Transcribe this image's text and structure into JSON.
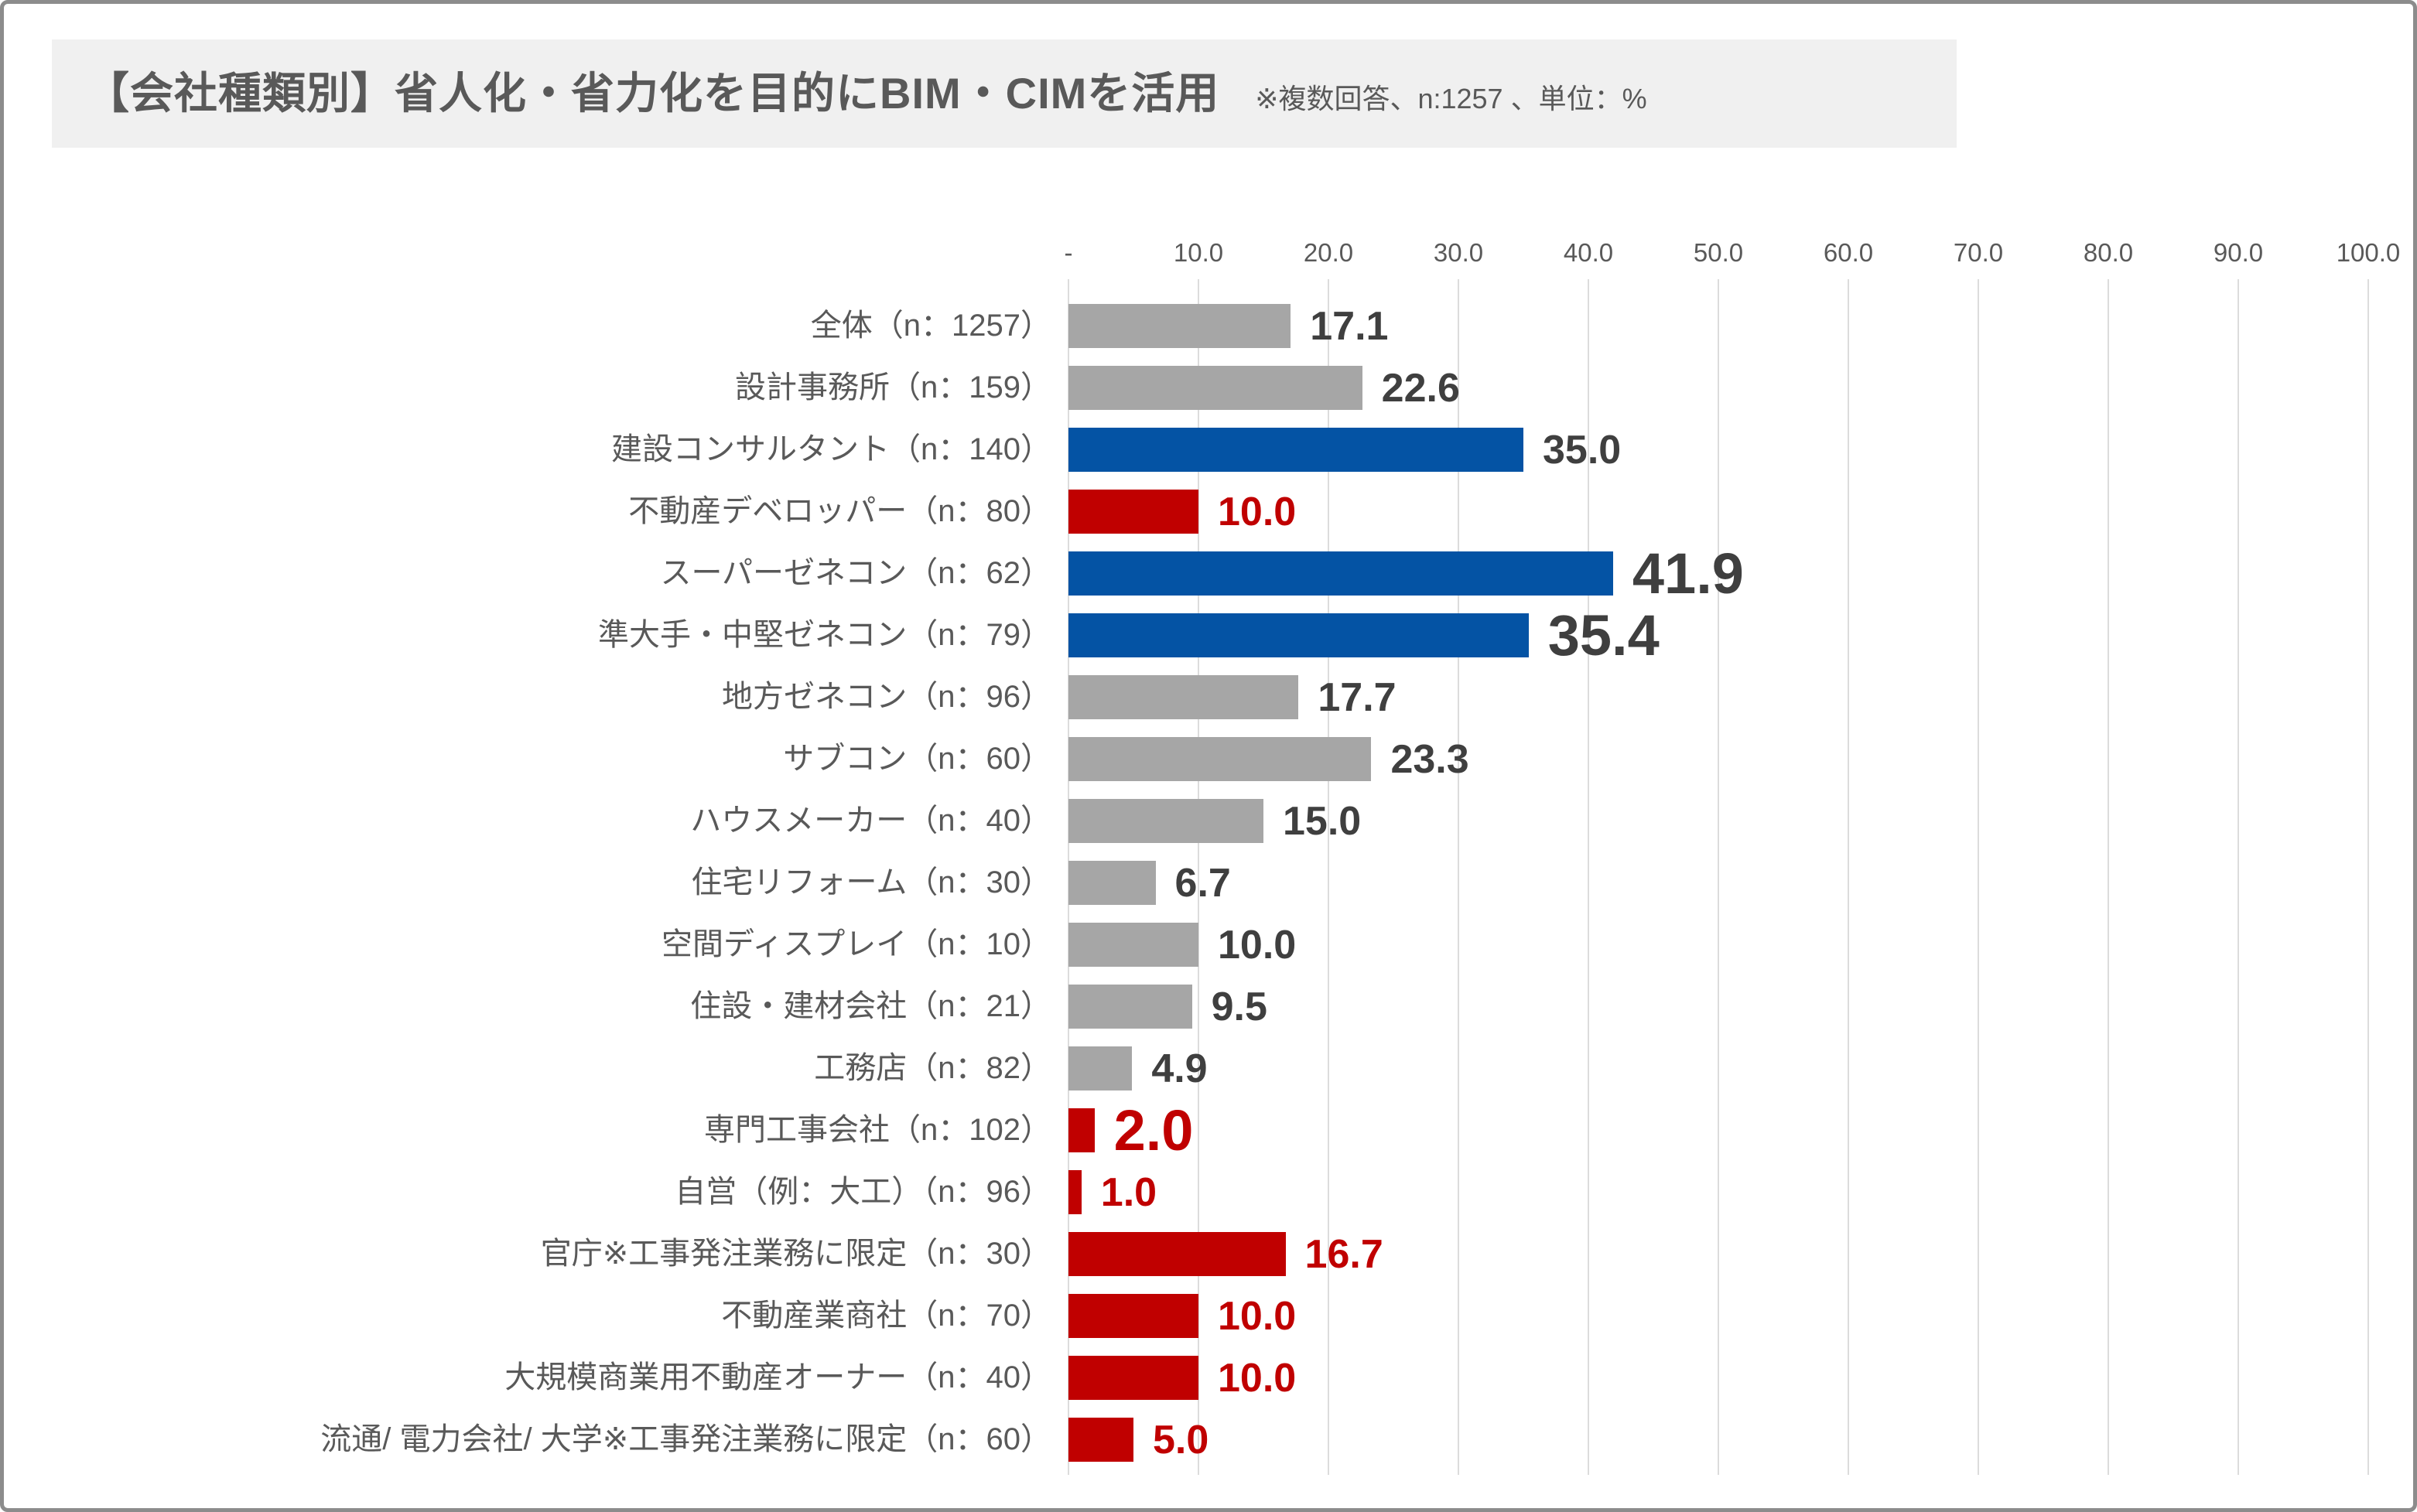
{
  "header": {
    "title": "【会社種類別】省人化・省力化を目的にBIM・CIMを活用",
    "note": "※複数回答、n:1257 、単位：%"
  },
  "chart_data": {
    "type": "bar",
    "orientation": "horizontal",
    "title": "【会社種類別】省人化・省力化を目的にBIM・CIMを活用",
    "subtitle": "※複数回答、n:1257 、単位：%",
    "unit": "%",
    "xlim": [
      0,
      100
    ],
    "x_ticks": [
      "-",
      "10.0",
      "20.0",
      "30.0",
      "40.0",
      "50.0",
      "60.0",
      "70.0",
      "80.0",
      "90.0",
      "100.0"
    ],
    "grid": true,
    "legend": "none",
    "categories": [
      "全体（n：1257）",
      "設計事務所（n：159）",
      "建設コンサルタント（n：140）",
      "不動産デベロッパー（n：80）",
      "スーパーゼネコン（n：62）",
      "準大手・中堅ゼネコン（n：79）",
      "地方ゼネコン（n：96）",
      "サブコン（n：60）",
      "ハウスメーカー（n：40）",
      "住宅リフォーム（n：30）",
      "空間ディスプレイ（n：10）",
      "住設・建材会社（n：21）",
      "工務店（n：82）",
      "専門工事会社（n：102）",
      "自営（例：大工）（n：96）",
      "官庁※工事発注業務に限定（n：30）",
      "不動産業商社（n：70）",
      "大規模商業用不動産オーナー（n：40）",
      "流通/ 電力会社/ 大学※工事発注業務に限定（n：60）"
    ],
    "values": [
      17.1,
      22.6,
      35.0,
      10.0,
      41.9,
      35.4,
      17.7,
      23.3,
      15.0,
      6.7,
      10.0,
      9.5,
      4.9,
      2.0,
      1.0,
      16.7,
      10.0,
      10.0,
      5.0
    ],
    "value_labels": [
      "17.1",
      "22.6",
      "35.0",
      "10.0",
      "41.9",
      "35.4",
      "17.7",
      "23.3",
      "15.0",
      "6.7",
      "10.0",
      "9.5",
      "4.9",
      "2.0",
      "1.0",
      "16.7",
      "10.0",
      "10.0",
      "5.0"
    ],
    "bar_color_keys": [
      "gray",
      "gray",
      "blue",
      "red",
      "blue",
      "blue",
      "gray",
      "gray",
      "gray",
      "gray",
      "gray",
      "gray",
      "gray",
      "red",
      "red",
      "red",
      "red",
      "red",
      "red"
    ],
    "emphasized": [
      false,
      false,
      false,
      false,
      true,
      true,
      false,
      false,
      false,
      false,
      false,
      false,
      false,
      true,
      false,
      false,
      false,
      false,
      false
    ],
    "colors": {
      "gray_bar": "#a6a6a6",
      "blue_bar": "#0453a4",
      "red_bar": "#c00000",
      "value_label_dark": "#3f3f3f",
      "value_label_red": "#c00000",
      "category_text": "#595959",
      "axis_text": "#595959",
      "gridline": "#dcdcdc",
      "title_text": "#595959",
      "title_background": "#f0f0f0",
      "card_border": "#8c8c8c"
    }
  }
}
